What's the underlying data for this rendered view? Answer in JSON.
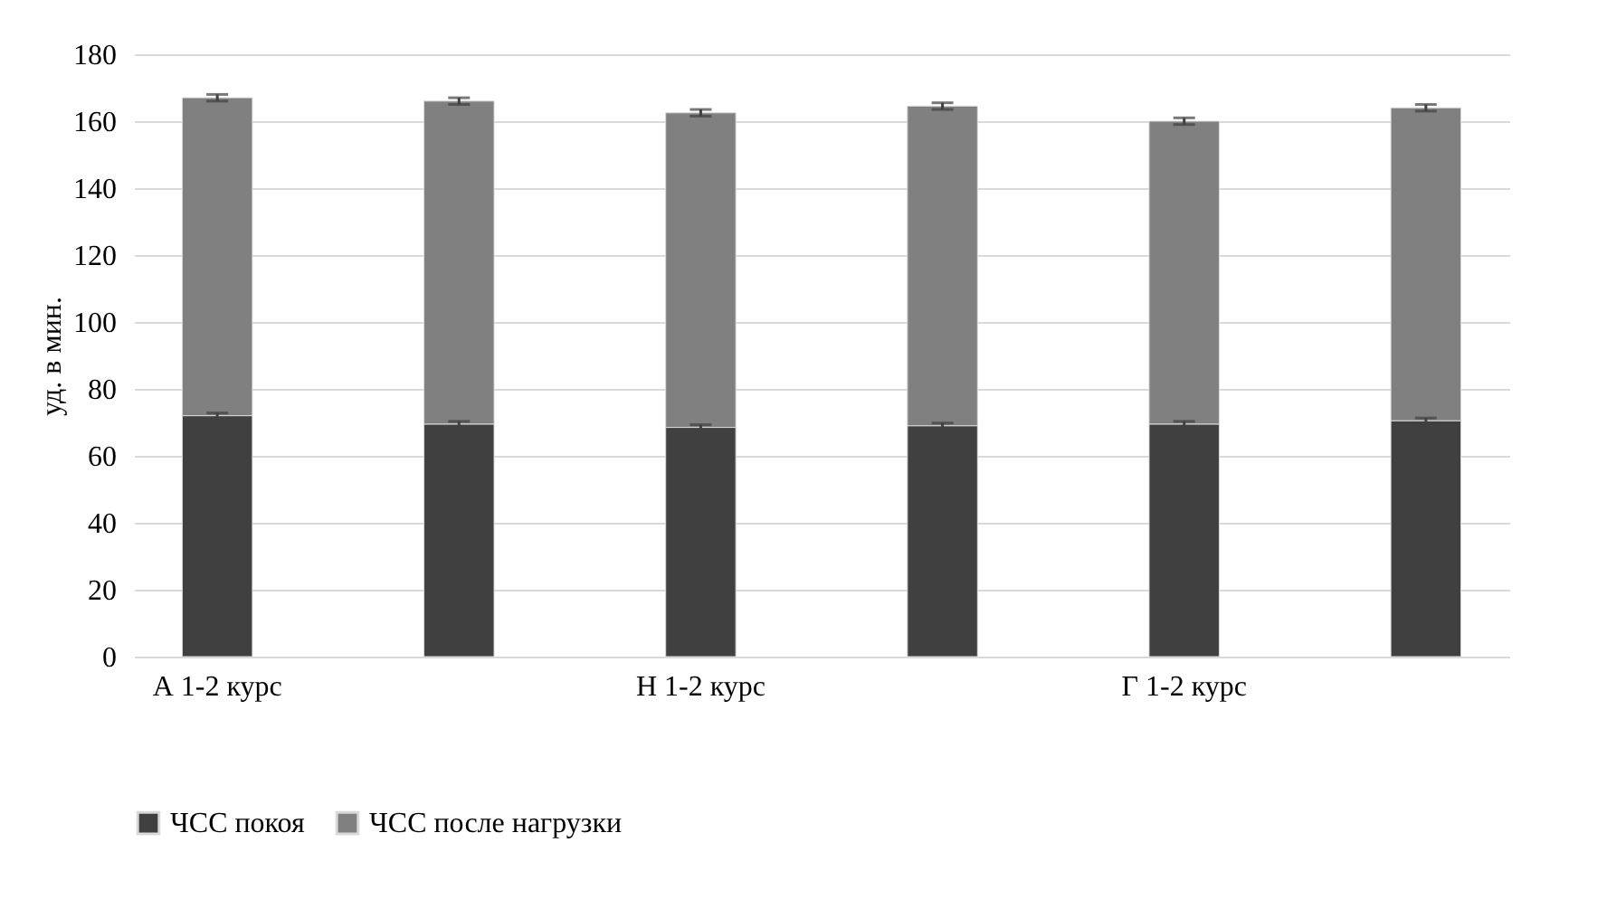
{
  "chart_data": {
    "type": "bar",
    "stacked": true,
    "ylabel": "уд. в мин.",
    "categories": [
      "А 1-2 курс",
      null,
      "Н 1-2 курс",
      null,
      "Г 1-2 курс",
      null
    ],
    "series": [
      {
        "name": "ЧСС покоя",
        "color": "#404040",
        "values": [
          72,
          69.5,
          68.5,
          69,
          69.5,
          70.5
        ],
        "errors": [
          0.8,
          0.8,
          0.8,
          0.8,
          0.8,
          0.8
        ]
      },
      {
        "name": "ЧСС после нагрузки",
        "color": "#808080",
        "values": [
          95,
          96.5,
          94,
          95.5,
          90.5,
          93.5
        ],
        "errors": [
          1,
          1,
          1,
          1,
          1,
          1
        ]
      }
    ],
    "ylim": [
      0,
      180
    ],
    "yticks": [
      0,
      20,
      40,
      60,
      80,
      100,
      120,
      140,
      160,
      180
    ],
    "grid": "y",
    "legend": "bottom"
  }
}
